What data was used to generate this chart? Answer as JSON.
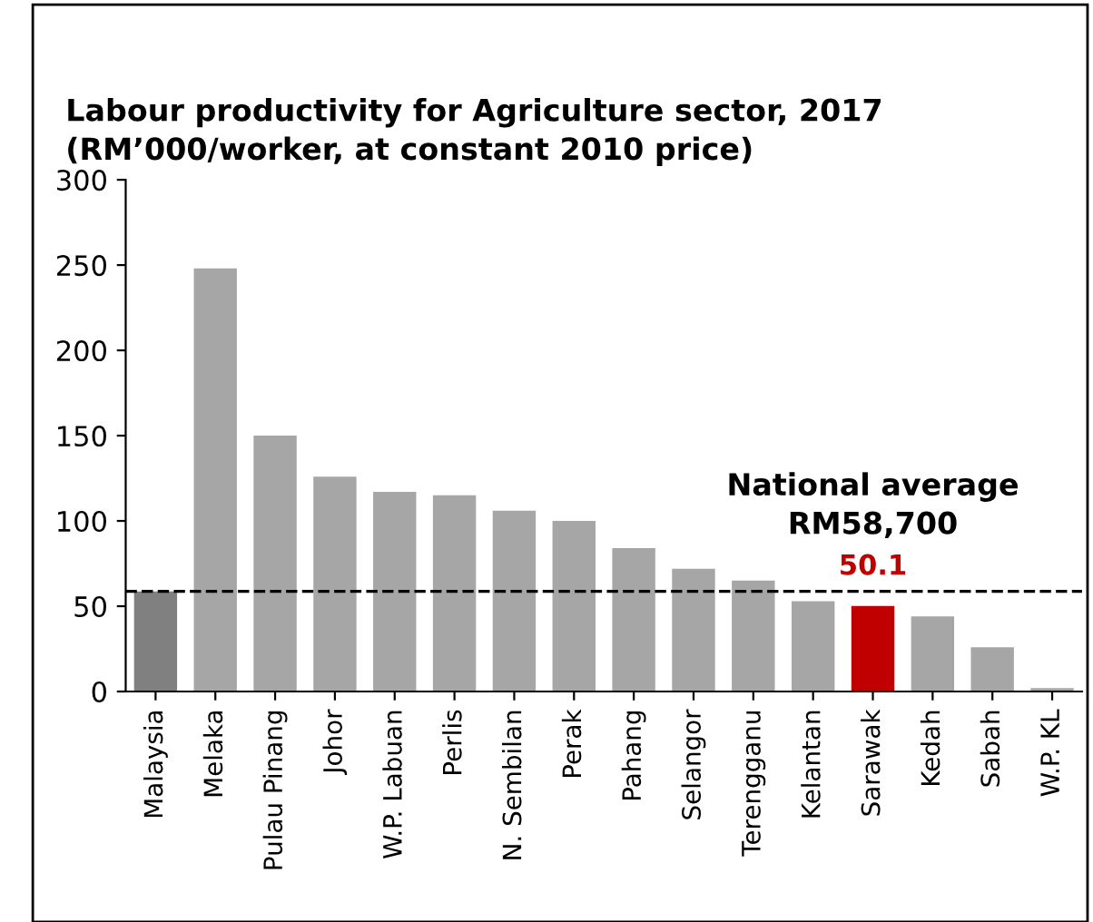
{
  "chart_data": {
    "type": "bar",
    "title": "Labour productivity for Agriculture sector, 2017\n(RM’000/worker, at constant 2010 price)",
    "categories": [
      "Malaysia",
      "Melaka",
      "Pulau Pinang",
      "Johor",
      "W.P. Labuan",
      "Perlis",
      "N. Sembilan",
      "Perak",
      "Pahang",
      "Selangor",
      "Terengganu",
      "Kelantan",
      "Sarawak",
      "Kedah",
      "Sabah",
      "W.P. KL"
    ],
    "values": [
      58.7,
      248,
      150,
      126,
      117,
      115,
      106,
      100,
      84,
      72,
      65,
      53,
      50.1,
      44,
      26,
      2
    ],
    "colors": [
      "#808080",
      "#a6a6a6",
      "#a6a6a6",
      "#a6a6a6",
      "#a6a6a6",
      "#a6a6a6",
      "#a6a6a6",
      "#a6a6a6",
      "#a6a6a6",
      "#a6a6a6",
      "#a6a6a6",
      "#a6a6a6",
      "#c00000",
      "#a6a6a6",
      "#a6a6a6",
      "#a6a6a6"
    ],
    "value_labels": [
      null,
      null,
      null,
      null,
      null,
      null,
      null,
      null,
      null,
      null,
      null,
      null,
      "50.1",
      null,
      null,
      null
    ],
    "ylim": [
      0,
      300
    ],
    "yticks": [
      0,
      50,
      100,
      150,
      200,
      250,
      300
    ],
    "grid": false,
    "legend": false,
    "ref_lines": [
      {
        "axis": "y",
        "value": 58.7,
        "label": "National average\nRM58,700",
        "color": "#000000",
        "line_style": "dashed"
      }
    ]
  }
}
